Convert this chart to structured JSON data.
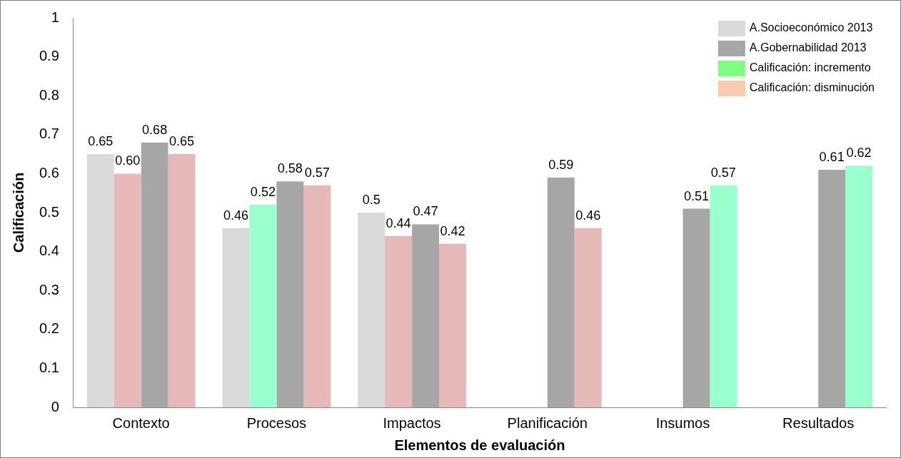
{
  "chart_data": {
    "type": "bar",
    "xlabel": "Elementos de evaluación",
    "ylabel": "Calificación",
    "categories": [
      "Contexto",
      "Procesos",
      "Impactos",
      "Planificación",
      "Insumos",
      "Resultados"
    ],
    "ylim": [
      0,
      1
    ],
    "yticks": [
      0,
      0.1,
      0.2,
      0.3,
      0.4,
      0.5,
      0.6,
      0.7,
      0.8,
      0.9,
      1
    ],
    "grid": false,
    "legend": "top right",
    "series": [
      {
        "name": "A.Socioeconómico 2013",
        "color": "#d9d9d9",
        "values": [
          0.65,
          0.46,
          0.5,
          null,
          null,
          null
        ],
        "value_labels": [
          "0.65",
          "0.46",
          "0.5",
          null,
          null,
          null
        ]
      },
      {
        "colors": [
          "#e6b8b7",
          "#99ffcc",
          "#e6b8b7",
          null,
          null,
          null
        ],
        "values": [
          0.6,
          0.52,
          0.44,
          null,
          null,
          null
        ],
        "value_labels": [
          "0.60",
          "0.52",
          "0.44",
          null,
          null,
          null
        ]
      },
      {
        "name": "A.Gobernabilidad 2013",
        "color": "#a6a6a6",
        "values": [
          0.68,
          0.58,
          0.47,
          0.59,
          0.51,
          0.61
        ],
        "value_labels": [
          "0.68",
          "0.58",
          "0.47",
          "0.59",
          "0.51",
          "0.61"
        ]
      },
      {
        "colors": [
          "#e6b8b7",
          "#e6b8b7",
          "#e6b8b7",
          "#e6b8b7",
          "#99ffcc",
          "#99ffcc"
        ],
        "values": [
          0.65,
          0.57,
          0.42,
          0.46,
          0.57,
          0.62
        ],
        "value_labels": [
          "0.65",
          "0.57",
          "0.42",
          "0.46",
          "0.57",
          "0.62"
        ]
      },
      {
        "name": "Calificación: incremento",
        "color": "#80ff80",
        "values": [
          null,
          null,
          null,
          null,
          null,
          null
        ]
      },
      {
        "name": "Calificación: disminución",
        "color": "#f8cbad",
        "values": [
          null,
          null,
          null,
          null,
          null,
          null
        ]
      }
    ]
  }
}
